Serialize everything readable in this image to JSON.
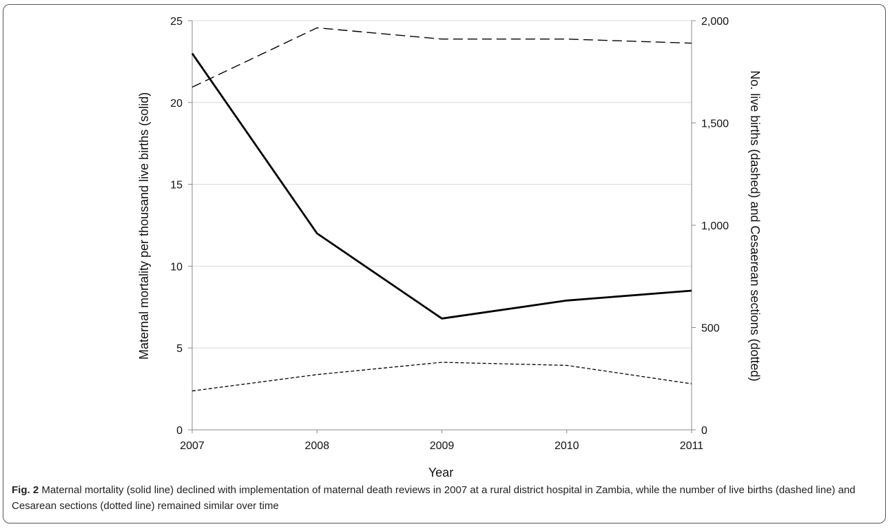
{
  "chart_data": {
    "type": "line",
    "x": [
      2007,
      2008,
      2009,
      2010,
      2011
    ],
    "xlabel": "Year",
    "x_tick_labels": [
      "2007",
      "2008",
      "2009",
      "2010",
      "2011"
    ],
    "y_left": {
      "label": "Maternal mortality per thousand live births (solid)",
      "ylim": [
        0,
        25
      ],
      "ticks": [
        0,
        5,
        10,
        15,
        20,
        25
      ],
      "tick_labels": [
        "0",
        "5",
        "10",
        "15",
        "20",
        "25"
      ]
    },
    "y_right": {
      "label": "No. live births (dashed) and Cesaerean sections (dotted)",
      "ylim": [
        0,
        2000
      ],
      "ticks": [
        0,
        500,
        1000,
        1500,
        2000
      ],
      "tick_labels": [
        "0",
        "500",
        "1,000",
        "1,500",
        "2,000"
      ]
    },
    "series": [
      {
        "style": "solid",
        "axis": "left",
        "values": [
          23.0,
          12.0,
          6.8,
          7.9,
          8.5
        ]
      },
      {
        "style": "dashed",
        "axis": "right",
        "values": [
          1675,
          1965,
          1910,
          1910,
          1890
        ]
      },
      {
        "style": "dotted",
        "axis": "right",
        "values": [
          190,
          270,
          330,
          315,
          225
        ]
      }
    ],
    "grid": true,
    "colors": {
      "lines": "#000000",
      "grid": "#d9d9d9",
      "axis": "#888888"
    }
  },
  "caption": {
    "label": "Fig. 2",
    "text": " Maternal mortality (solid line) declined with implementation of maternal death reviews in 2007 at a rural district hospital in Zambia, while the number of live births (dashed line) and Cesarean sections (dotted line) remained similar over time"
  }
}
